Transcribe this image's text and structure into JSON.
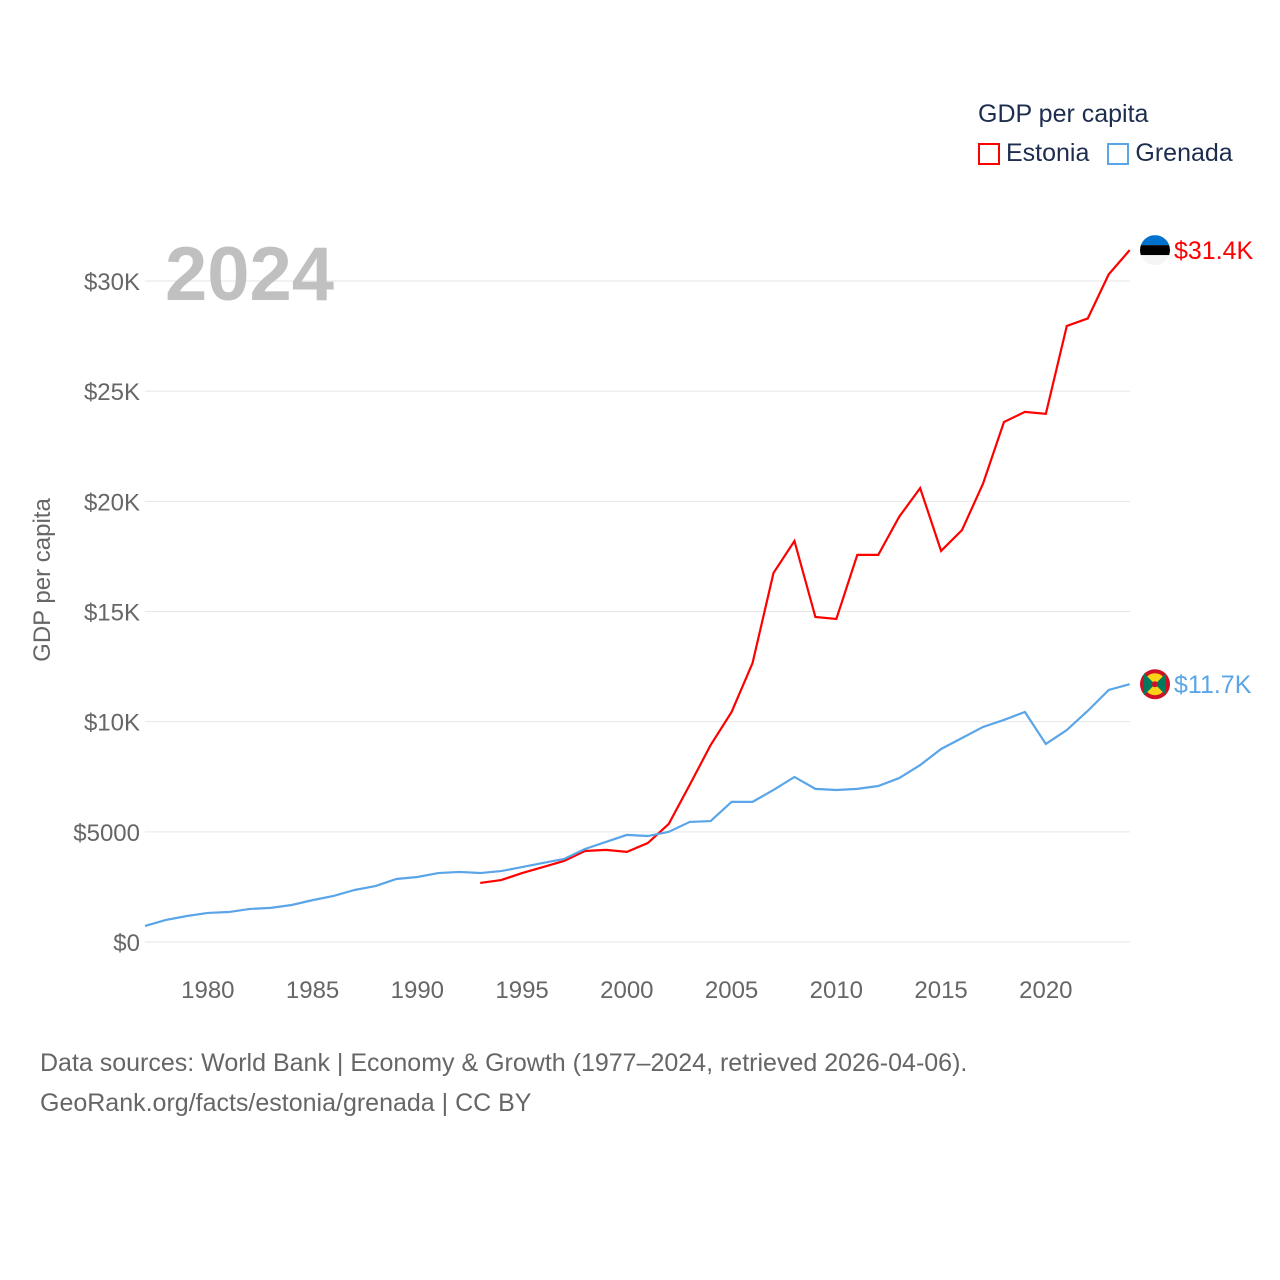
{
  "chart_data": {
    "type": "line",
    "year_label": "2024",
    "ylabel": "GDP per capita",
    "ylim": [
      0,
      33000
    ],
    "xlim": [
      1977,
      2024
    ],
    "yticks": [
      {
        "v": 0,
        "label": "$0"
      },
      {
        "v": 5000,
        "label": "$5000"
      },
      {
        "v": 10000,
        "label": "$10K"
      },
      {
        "v": 15000,
        "label": "$15K"
      },
      {
        "v": 20000,
        "label": "$20K"
      },
      {
        "v": 25000,
        "label": "$25K"
      },
      {
        "v": 30000,
        "label": "$30K"
      }
    ],
    "xticks": [
      1980,
      1985,
      1990,
      1995,
      2000,
      2005,
      2010,
      2015,
      2020
    ],
    "legend": {
      "title": "GDP per capita",
      "placement": "top-right"
    },
    "series": [
      {
        "name": "Estonia",
        "color": "#ff0000",
        "end_label": "$31.4K",
        "start_year": 1993,
        "values": [
          2680,
          2810,
          3130,
          3400,
          3680,
          4130,
          4180,
          4090,
          4490,
          5360,
          7130,
          8940,
          10440,
          12660,
          16750,
          18200,
          14750,
          14660,
          17570,
          17570,
          19300,
          20600,
          17750,
          18700,
          20800,
          23600,
          24060,
          23970,
          27960,
          28300,
          30300,
          31400
        ]
      },
      {
        "name": "Grenada",
        "color": "#5aa5e8",
        "end_label": "$11.7K",
        "start_year": 1977,
        "values": [
          730,
          1000,
          1180,
          1320,
          1360,
          1500,
          1550,
          1680,
          1900,
          2090,
          2360,
          2540,
          2860,
          2950,
          3130,
          3180,
          3130,
          3220,
          3400,
          3590,
          3770,
          4220,
          4540,
          4860,
          4810,
          5000,
          5450,
          5490,
          6360,
          6360,
          6900,
          7490,
          6950,
          6900,
          6950,
          7080,
          7440,
          8030,
          8760,
          9260,
          9760,
          10080,
          10440,
          8990,
          9620,
          10490,
          11440,
          11700
        ]
      }
    ]
  },
  "footer": {
    "line1": "Data sources: World Bank | Economy & Growth (1977–2024, retrieved 2026-04-06).",
    "line2": "GeoRank.org/facts/estonia/grenada | CC BY"
  }
}
